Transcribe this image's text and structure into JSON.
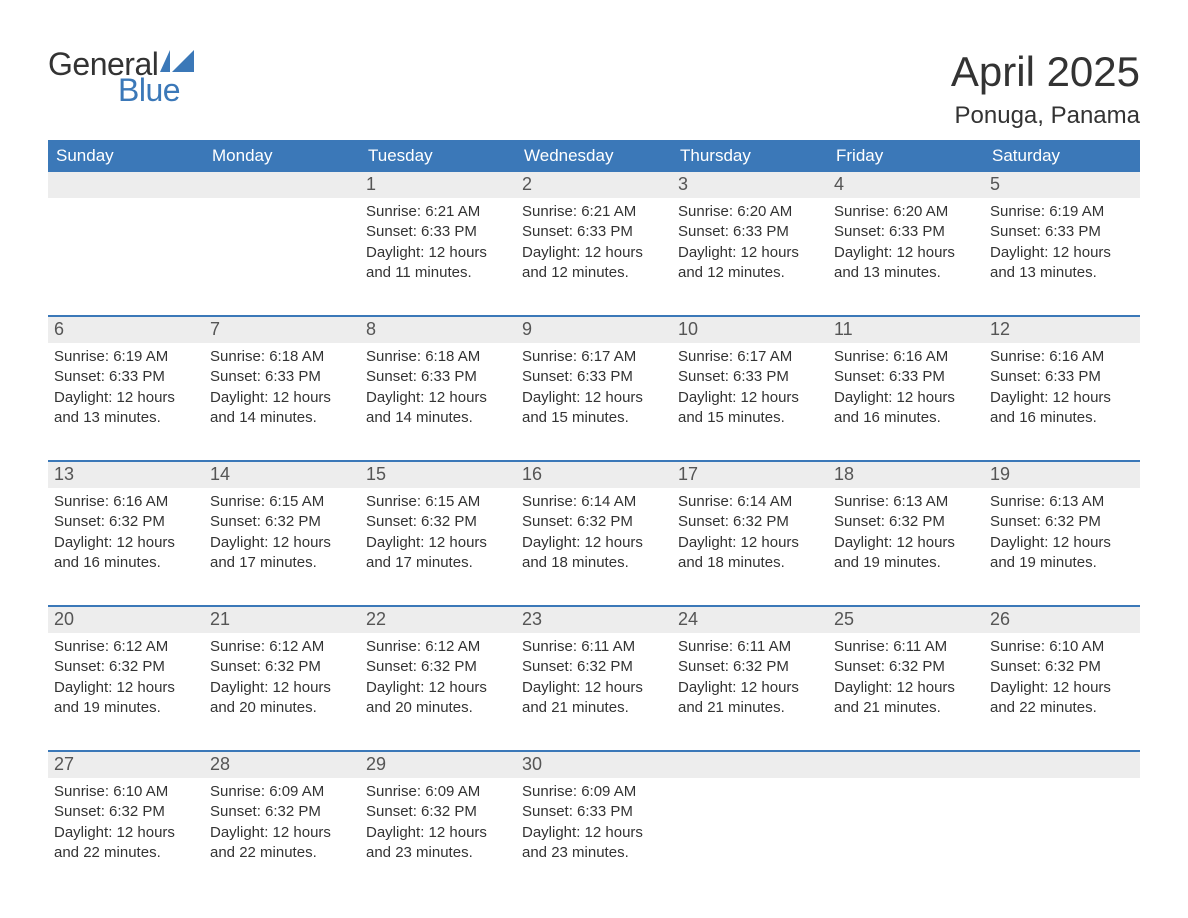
{
  "logo": {
    "text_general": "General",
    "text_blue": "Blue"
  },
  "title": "April 2025",
  "location": "Ponuga, Panama",
  "colors": {
    "header_bg": "#3b78b8",
    "header_text": "#ffffff",
    "daynum_bg": "#ededed",
    "daynum_text": "#555555",
    "body_text": "#333333",
    "week_border": "#3b78b8",
    "page_bg": "#ffffff",
    "logo_blue": "#3b78b8",
    "logo_general": "#333333"
  },
  "typography": {
    "title_fontsize": 42,
    "location_fontsize": 24,
    "header_fontsize": 17,
    "daynum_fontsize": 18,
    "body_fontsize": 15,
    "logo_fontsize": 32,
    "font_family": "Arial"
  },
  "day_labels": [
    "Sunday",
    "Monday",
    "Tuesday",
    "Wednesday",
    "Thursday",
    "Friday",
    "Saturday"
  ],
  "weeks": [
    [
      {
        "day": "",
        "sunrise": "",
        "sunset": "",
        "daylight1": "",
        "daylight2": ""
      },
      {
        "day": "",
        "sunrise": "",
        "sunset": "",
        "daylight1": "",
        "daylight2": ""
      },
      {
        "day": "1",
        "sunrise": "Sunrise: 6:21 AM",
        "sunset": "Sunset: 6:33 PM",
        "daylight1": "Daylight: 12 hours",
        "daylight2": "and 11 minutes."
      },
      {
        "day": "2",
        "sunrise": "Sunrise: 6:21 AM",
        "sunset": "Sunset: 6:33 PM",
        "daylight1": "Daylight: 12 hours",
        "daylight2": "and 12 minutes."
      },
      {
        "day": "3",
        "sunrise": "Sunrise: 6:20 AM",
        "sunset": "Sunset: 6:33 PM",
        "daylight1": "Daylight: 12 hours",
        "daylight2": "and 12 minutes."
      },
      {
        "day": "4",
        "sunrise": "Sunrise: 6:20 AM",
        "sunset": "Sunset: 6:33 PM",
        "daylight1": "Daylight: 12 hours",
        "daylight2": "and 13 minutes."
      },
      {
        "day": "5",
        "sunrise": "Sunrise: 6:19 AM",
        "sunset": "Sunset: 6:33 PM",
        "daylight1": "Daylight: 12 hours",
        "daylight2": "and 13 minutes."
      }
    ],
    [
      {
        "day": "6",
        "sunrise": "Sunrise: 6:19 AM",
        "sunset": "Sunset: 6:33 PM",
        "daylight1": "Daylight: 12 hours",
        "daylight2": "and 13 minutes."
      },
      {
        "day": "7",
        "sunrise": "Sunrise: 6:18 AM",
        "sunset": "Sunset: 6:33 PM",
        "daylight1": "Daylight: 12 hours",
        "daylight2": "and 14 minutes."
      },
      {
        "day": "8",
        "sunrise": "Sunrise: 6:18 AM",
        "sunset": "Sunset: 6:33 PM",
        "daylight1": "Daylight: 12 hours",
        "daylight2": "and 14 minutes."
      },
      {
        "day": "9",
        "sunrise": "Sunrise: 6:17 AM",
        "sunset": "Sunset: 6:33 PM",
        "daylight1": "Daylight: 12 hours",
        "daylight2": "and 15 minutes."
      },
      {
        "day": "10",
        "sunrise": "Sunrise: 6:17 AM",
        "sunset": "Sunset: 6:33 PM",
        "daylight1": "Daylight: 12 hours",
        "daylight2": "and 15 minutes."
      },
      {
        "day": "11",
        "sunrise": "Sunrise: 6:16 AM",
        "sunset": "Sunset: 6:33 PM",
        "daylight1": "Daylight: 12 hours",
        "daylight2": "and 16 minutes."
      },
      {
        "day": "12",
        "sunrise": "Sunrise: 6:16 AM",
        "sunset": "Sunset: 6:33 PM",
        "daylight1": "Daylight: 12 hours",
        "daylight2": "and 16 minutes."
      }
    ],
    [
      {
        "day": "13",
        "sunrise": "Sunrise: 6:16 AM",
        "sunset": "Sunset: 6:32 PM",
        "daylight1": "Daylight: 12 hours",
        "daylight2": "and 16 minutes."
      },
      {
        "day": "14",
        "sunrise": "Sunrise: 6:15 AM",
        "sunset": "Sunset: 6:32 PM",
        "daylight1": "Daylight: 12 hours",
        "daylight2": "and 17 minutes."
      },
      {
        "day": "15",
        "sunrise": "Sunrise: 6:15 AM",
        "sunset": "Sunset: 6:32 PM",
        "daylight1": "Daylight: 12 hours",
        "daylight2": "and 17 minutes."
      },
      {
        "day": "16",
        "sunrise": "Sunrise: 6:14 AM",
        "sunset": "Sunset: 6:32 PM",
        "daylight1": "Daylight: 12 hours",
        "daylight2": "and 18 minutes."
      },
      {
        "day": "17",
        "sunrise": "Sunrise: 6:14 AM",
        "sunset": "Sunset: 6:32 PM",
        "daylight1": "Daylight: 12 hours",
        "daylight2": "and 18 minutes."
      },
      {
        "day": "18",
        "sunrise": "Sunrise: 6:13 AM",
        "sunset": "Sunset: 6:32 PM",
        "daylight1": "Daylight: 12 hours",
        "daylight2": "and 19 minutes."
      },
      {
        "day": "19",
        "sunrise": "Sunrise: 6:13 AM",
        "sunset": "Sunset: 6:32 PM",
        "daylight1": "Daylight: 12 hours",
        "daylight2": "and 19 minutes."
      }
    ],
    [
      {
        "day": "20",
        "sunrise": "Sunrise: 6:12 AM",
        "sunset": "Sunset: 6:32 PM",
        "daylight1": "Daylight: 12 hours",
        "daylight2": "and 19 minutes."
      },
      {
        "day": "21",
        "sunrise": "Sunrise: 6:12 AM",
        "sunset": "Sunset: 6:32 PM",
        "daylight1": "Daylight: 12 hours",
        "daylight2": "and 20 minutes."
      },
      {
        "day": "22",
        "sunrise": "Sunrise: 6:12 AM",
        "sunset": "Sunset: 6:32 PM",
        "daylight1": "Daylight: 12 hours",
        "daylight2": "and 20 minutes."
      },
      {
        "day": "23",
        "sunrise": "Sunrise: 6:11 AM",
        "sunset": "Sunset: 6:32 PM",
        "daylight1": "Daylight: 12 hours",
        "daylight2": "and 21 minutes."
      },
      {
        "day": "24",
        "sunrise": "Sunrise: 6:11 AM",
        "sunset": "Sunset: 6:32 PM",
        "daylight1": "Daylight: 12 hours",
        "daylight2": "and 21 minutes."
      },
      {
        "day": "25",
        "sunrise": "Sunrise: 6:11 AM",
        "sunset": "Sunset: 6:32 PM",
        "daylight1": "Daylight: 12 hours",
        "daylight2": "and 21 minutes."
      },
      {
        "day": "26",
        "sunrise": "Sunrise: 6:10 AM",
        "sunset": "Sunset: 6:32 PM",
        "daylight1": "Daylight: 12 hours",
        "daylight2": "and 22 minutes."
      }
    ],
    [
      {
        "day": "27",
        "sunrise": "Sunrise: 6:10 AM",
        "sunset": "Sunset: 6:32 PM",
        "daylight1": "Daylight: 12 hours",
        "daylight2": "and 22 minutes."
      },
      {
        "day": "28",
        "sunrise": "Sunrise: 6:09 AM",
        "sunset": "Sunset: 6:32 PM",
        "daylight1": "Daylight: 12 hours",
        "daylight2": "and 22 minutes."
      },
      {
        "day": "29",
        "sunrise": "Sunrise: 6:09 AM",
        "sunset": "Sunset: 6:32 PM",
        "daylight1": "Daylight: 12 hours",
        "daylight2": "and 23 minutes."
      },
      {
        "day": "30",
        "sunrise": "Sunrise: 6:09 AM",
        "sunset": "Sunset: 6:33 PM",
        "daylight1": "Daylight: 12 hours",
        "daylight2": "and 23 minutes."
      },
      {
        "day": "",
        "sunrise": "",
        "sunset": "",
        "daylight1": "",
        "daylight2": ""
      },
      {
        "day": "",
        "sunrise": "",
        "sunset": "",
        "daylight1": "",
        "daylight2": ""
      },
      {
        "day": "",
        "sunrise": "",
        "sunset": "",
        "daylight1": "",
        "daylight2": ""
      }
    ]
  ]
}
